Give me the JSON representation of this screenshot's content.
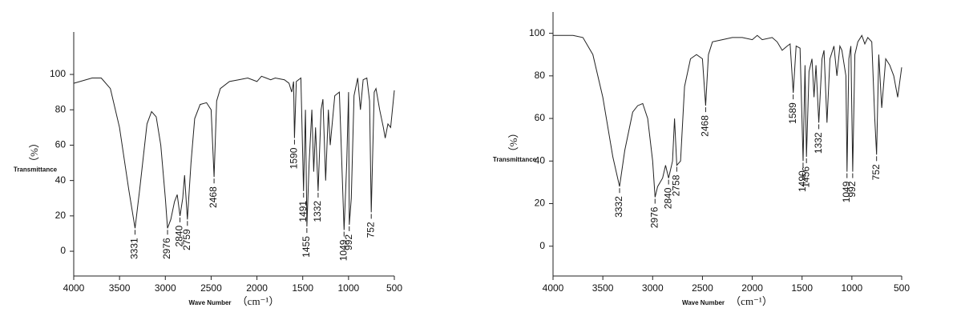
{
  "chart_data": [
    {
      "type": "line",
      "x_label": "Wave Number",
      "x_unit": "（cm⁻¹）",
      "y_label": "Transmittance",
      "y_unit": "（%）",
      "xlim": [
        4000,
        500
      ],
      "xticks": [
        4000,
        3500,
        3000,
        2500,
        2000,
        1500,
        1000,
        500
      ],
      "ylim": [
        -14,
        124
      ],
      "yticks": [
        0,
        20,
        40,
        60,
        80,
        100
      ],
      "color": "#222222",
      "x": [
        4000,
        3800,
        3700,
        3600,
        3500,
        3400,
        3331,
        3280,
        3200,
        3150,
        3100,
        3050,
        3000,
        2976,
        2940,
        2900,
        2870,
        2840,
        2810,
        2790,
        2759,
        2720,
        2680,
        2620,
        2550,
        2500,
        2468,
        2440,
        2400,
        2300,
        2200,
        2100,
        2000,
        1950,
        1900,
        1850,
        1800,
        1700,
        1650,
        1620,
        1600,
        1590,
        1570,
        1520,
        1491,
        1470,
        1455,
        1430,
        1400,
        1380,
        1360,
        1332,
        1300,
        1280,
        1250,
        1220,
        1200,
        1150,
        1100,
        1080,
        1049,
        1020,
        1000,
        992,
        970,
        940,
        900,
        870,
        840,
        800,
        770,
        752,
        720,
        700,
        660,
        620,
        600,
        570,
        540,
        500
      ],
      "values": [
        95,
        98,
        98,
        92,
        70,
        35,
        13,
        35,
        72,
        79,
        76,
        60,
        30,
        13,
        18,
        28,
        32,
        20,
        30,
        43,
        18,
        50,
        75,
        83,
        84,
        80,
        42,
        85,
        92,
        96,
        97,
        98,
        96,
        99,
        98,
        97,
        98,
        97,
        95,
        90,
        96,
        64,
        96,
        98,
        34,
        80,
        14,
        50,
        80,
        45,
        70,
        34,
        80,
        86,
        40,
        80,
        60,
        88,
        90,
        60,
        12,
        50,
        90,
        15,
        30,
        88,
        98,
        80,
        97,
        98,
        85,
        22,
        90,
        92,
        80,
        70,
        64,
        72,
        70,
        91
      ],
      "annotations": [
        {
          "x": 3331,
          "y": 13
        },
        {
          "x": 2976,
          "y": 13
        },
        {
          "x": 2840,
          "y": 20
        },
        {
          "x": 2759,
          "y": 18
        },
        {
          "x": 2468,
          "y": 42
        },
        {
          "x": 1590,
          "y": 64
        },
        {
          "x": 1491,
          "y": 34
        },
        {
          "x": 1455,
          "y": 14
        },
        {
          "x": 1332,
          "y": 34
        },
        {
          "x": 1049,
          "y": 12
        },
        {
          "x": 992,
          "y": 15
        },
        {
          "x": 752,
          "y": 22
        }
      ]
    },
    {
      "type": "line",
      "x_label": "Wave Number",
      "x_unit": "（cm⁻¹）",
      "y_label": "Transmittance",
      "y_unit": "（%）",
      "xlim": [
        4000,
        500
      ],
      "xticks": [
        4000,
        3500,
        3000,
        2500,
        2000,
        1500,
        1000,
        500
      ],
      "ylim": [
        -14,
        110
      ],
      "yticks": [
        0,
        20,
        40,
        60,
        80,
        100
      ],
      "color": "#222222",
      "x": [
        4000,
        3800,
        3700,
        3600,
        3500,
        3400,
        3332,
        3280,
        3200,
        3150,
        3100,
        3050,
        3000,
        2976,
        2950,
        2900,
        2870,
        2840,
        2800,
        2780,
        2758,
        2720,
        2680,
        2620,
        2560,
        2500,
        2468,
        2440,
        2400,
        2300,
        2200,
        2100,
        2000,
        1950,
        1900,
        1800,
        1750,
        1700,
        1650,
        1620,
        1589,
        1560,
        1520,
        1490,
        1470,
        1456,
        1430,
        1400,
        1380,
        1360,
        1332,
        1300,
        1280,
        1250,
        1220,
        1180,
        1150,
        1120,
        1100,
        1060,
        1049,
        1030,
        1010,
        992,
        970,
        940,
        900,
        870,
        840,
        800,
        770,
        752,
        730,
        700,
        660,
        620,
        580,
        540,
        500
      ],
      "values": [
        99,
        99,
        98,
        90,
        70,
        42,
        28,
        45,
        63,
        66,
        67,
        60,
        40,
        23,
        28,
        32,
        38,
        32,
        40,
        60,
        38,
        40,
        75,
        88,
        90,
        88,
        66,
        90,
        96,
        97,
        98,
        98,
        97,
        99,
        97,
        98,
        96,
        92,
        94,
        95,
        72,
        94,
        93,
        40,
        85,
        42,
        82,
        88,
        70,
        85,
        58,
        88,
        92,
        58,
        88,
        94,
        80,
        94,
        92,
        80,
        35,
        88,
        94,
        35,
        90,
        96,
        99,
        95,
        98,
        96,
        60,
        43,
        90,
        65,
        88,
        85,
        80,
        70,
        84
      ],
      "annotations": [
        {
          "x": 3332,
          "y": 28
        },
        {
          "x": 2976,
          "y": 23
        },
        {
          "x": 2840,
          "y": 32
        },
        {
          "x": 2758,
          "y": 38
        },
        {
          "x": 2468,
          "y": 66
        },
        {
          "x": 1589,
          "y": 72
        },
        {
          "x": 1490,
          "y": 40
        },
        {
          "x": 1456,
          "y": 42
        },
        {
          "x": 1332,
          "y": 58
        },
        {
          "x": 1049,
          "y": 35
        },
        {
          "x": 992,
          "y": 35
        },
        {
          "x": 752,
          "y": 43
        }
      ]
    }
  ]
}
